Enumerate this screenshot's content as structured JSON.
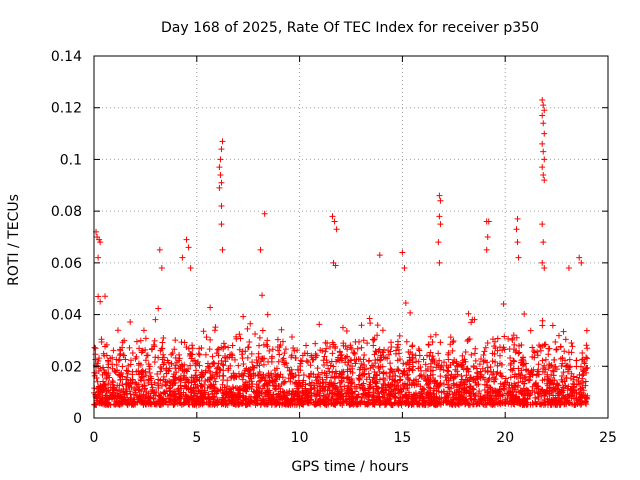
{
  "chart_data": {
    "type": "scatter",
    "title": "Day 168 of 2025, Rate Of TEC Index for receiver p350",
    "xlabel": "GPS time / hours",
    "ylabel": "ROTI / TECUs",
    "xlim": [
      0,
      25
    ],
    "ylim": [
      0,
      0.14
    ],
    "x_ticks": [
      0,
      5,
      10,
      15,
      20,
      25
    ],
    "x_tick_labels": [
      "0",
      "5",
      "10",
      "15",
      "20",
      "25"
    ],
    "y_ticks": [
      0,
      0.02,
      0.04,
      0.06,
      0.08,
      0.1,
      0.12,
      0.14
    ],
    "y_tick_labels": [
      "0",
      "0.02",
      "0.04",
      "0.06",
      "0.08",
      "0.1",
      "0.12",
      "0.14"
    ],
    "grid": true,
    "marker": "+",
    "color": "#ff0000",
    "x_data_end": 24,
    "series": [
      {
        "name": "ROTI",
        "baseline_range": [
          0.005,
          0.03
        ],
        "notable_points": [
          {
            "x": 0.1,
            "y": 0.072
          },
          {
            "x": 0.15,
            "y": 0.07
          },
          {
            "x": 0.2,
            "y": 0.062
          },
          {
            "x": 0.25,
            "y": 0.069
          },
          {
            "x": 0.3,
            "y": 0.068
          },
          {
            "x": 0.2,
            "y": 0.047
          },
          {
            "x": 0.3,
            "y": 0.045
          },
          {
            "x": 3.2,
            "y": 0.065
          },
          {
            "x": 3.3,
            "y": 0.058
          },
          {
            "x": 4.3,
            "y": 0.062
          },
          {
            "x": 4.5,
            "y": 0.069
          },
          {
            "x": 4.6,
            "y": 0.066
          },
          {
            "x": 4.7,
            "y": 0.058
          },
          {
            "x": 6.1,
            "y": 0.097
          },
          {
            "x": 6.15,
            "y": 0.1
          },
          {
            "x": 6.2,
            "y": 0.104
          },
          {
            "x": 6.25,
            "y": 0.107
          },
          {
            "x": 6.15,
            "y": 0.094
          },
          {
            "x": 6.2,
            "y": 0.091
          },
          {
            "x": 6.1,
            "y": 0.089
          },
          {
            "x": 6.2,
            "y": 0.082
          },
          {
            "x": 6.2,
            "y": 0.075
          },
          {
            "x": 6.25,
            "y": 0.065
          },
          {
            "x": 8.3,
            "y": 0.079
          },
          {
            "x": 8.1,
            "y": 0.065
          },
          {
            "x": 11.6,
            "y": 0.078
          },
          {
            "x": 11.7,
            "y": 0.076
          },
          {
            "x": 11.8,
            "y": 0.073
          },
          {
            "x": 11.65,
            "y": 0.06
          },
          {
            "x": 11.75,
            "y": 0.059
          },
          {
            "x": 13.9,
            "y": 0.063
          },
          {
            "x": 15.0,
            "y": 0.064
          },
          {
            "x": 15.1,
            "y": 0.058
          },
          {
            "x": 16.8,
            "y": 0.086
          },
          {
            "x": 16.85,
            "y": 0.084
          },
          {
            "x": 16.8,
            "y": 0.078
          },
          {
            "x": 16.85,
            "y": 0.075
          },
          {
            "x": 16.75,
            "y": 0.068
          },
          {
            "x": 16.8,
            "y": 0.06
          },
          {
            "x": 19.1,
            "y": 0.076
          },
          {
            "x": 19.2,
            "y": 0.076
          },
          {
            "x": 19.15,
            "y": 0.07
          },
          {
            "x": 19.1,
            "y": 0.065
          },
          {
            "x": 20.6,
            "y": 0.077
          },
          {
            "x": 20.55,
            "y": 0.073
          },
          {
            "x": 20.6,
            "y": 0.068
          },
          {
            "x": 20.65,
            "y": 0.062
          },
          {
            "x": 21.8,
            "y": 0.123
          },
          {
            "x": 21.85,
            "y": 0.121
          },
          {
            "x": 21.9,
            "y": 0.119
          },
          {
            "x": 21.8,
            "y": 0.117
          },
          {
            "x": 21.85,
            "y": 0.114
          },
          {
            "x": 21.9,
            "y": 0.11
          },
          {
            "x": 21.8,
            "y": 0.106
          },
          {
            "x": 21.85,
            "y": 0.103
          },
          {
            "x": 21.9,
            "y": 0.1
          },
          {
            "x": 21.8,
            "y": 0.097
          },
          {
            "x": 21.85,
            "y": 0.094
          },
          {
            "x": 21.9,
            "y": 0.092
          },
          {
            "x": 21.8,
            "y": 0.075
          },
          {
            "x": 21.85,
            "y": 0.068
          },
          {
            "x": 21.8,
            "y": 0.06
          },
          {
            "x": 21.9,
            "y": 0.058
          },
          {
            "x": 23.6,
            "y": 0.062
          },
          {
            "x": 23.7,
            "y": 0.06
          },
          {
            "x": 23.1,
            "y": 0.058
          }
        ]
      }
    ]
  }
}
